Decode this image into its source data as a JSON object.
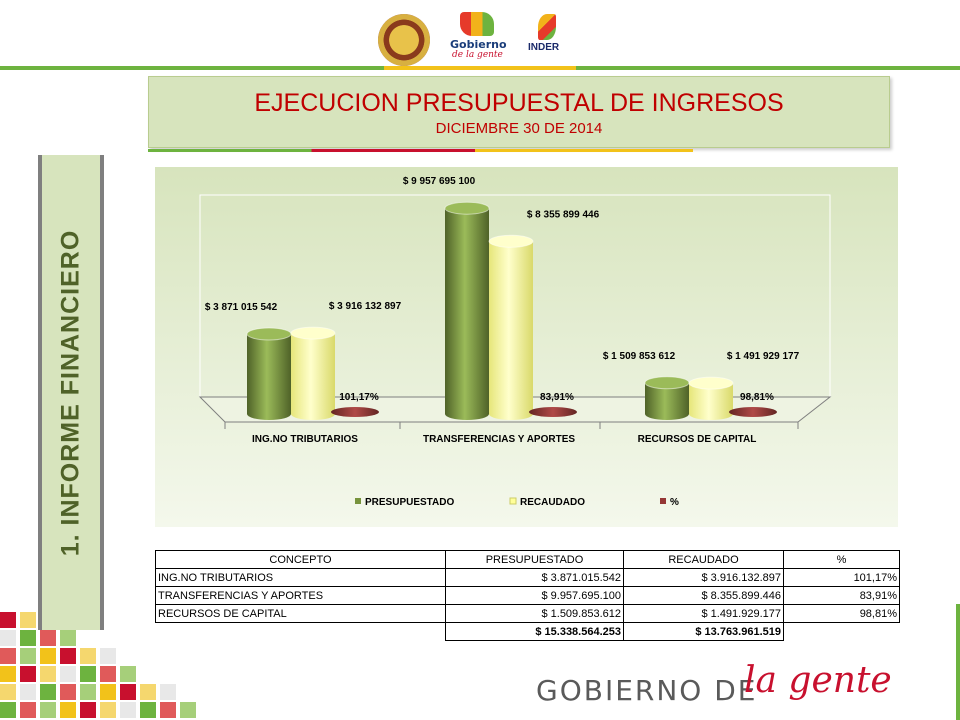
{
  "header": {
    "logos": {
      "gobierno_line1": "Gobierno",
      "gobierno_line2": "de la gente",
      "inder": "INDER"
    }
  },
  "title": {
    "main": "EJECUCION PRESUPUESTAL DE INGRESOS",
    "subtitle": "DICIEMBRE 30 DE 2014"
  },
  "sidebar": {
    "label": "1.    INFORME  FINANCIERO"
  },
  "chart_data": {
    "type": "bar",
    "categories": [
      "ING.NO TRIBUTARIOS",
      "TRANSFERENCIAS Y APORTES",
      "RECURSOS DE CAPITAL"
    ],
    "series": [
      {
        "name": "PRESUPUESTADO",
        "values": [
          3871015542,
          9957695100,
          1509853612
        ],
        "labels": [
          "$ 3 871 015 542",
          "$ 9 957 695 100",
          "$ 1 509 853 612"
        ],
        "color": "#77933c"
      },
      {
        "name": "RECAUDADO",
        "values": [
          3916132897,
          8355899446,
          1491929177
        ],
        "labels": [
          "$ 3 916 132 897",
          "$ 8 355 899 446",
          "$ 1 491 929 177"
        ],
        "color": "#ffff99"
      },
      {
        "name": "%",
        "values": [
          101.17,
          83.91,
          98.81
        ],
        "labels": [
          "101,17%",
          "83,91%",
          "98,81%"
        ],
        "color": "#953735"
      }
    ],
    "ylim": [
      0,
      10500000000
    ],
    "legend": "bottom"
  },
  "table": {
    "headers": [
      "CONCEPTO",
      "PRESUPUESTADO",
      "RECAUDADO",
      "%"
    ],
    "rows": [
      [
        "ING.NO TRIBUTARIOS",
        "$ 3.871.015.542",
        "$ 3.916.132.897",
        "101,17%"
      ],
      [
        "TRANSFERENCIAS Y APORTES",
        "$ 9.957.695.100",
        "$ 8.355.899.446",
        "83,91%"
      ],
      [
        "RECURSOS DE CAPITAL",
        "$ 1.509.853.612",
        "$ 1.491.929.177",
        "98,81%"
      ]
    ],
    "totals": [
      "$ 15.338.564.253",
      "$ 13.763.961.519"
    ]
  },
  "footer": {
    "text": "GOBIERNO DE",
    "brand": "la gente"
  },
  "colors": {
    "accent_green": "#6db33f",
    "title_red": "#c00000",
    "panel_green": "#d7e4bd"
  }
}
